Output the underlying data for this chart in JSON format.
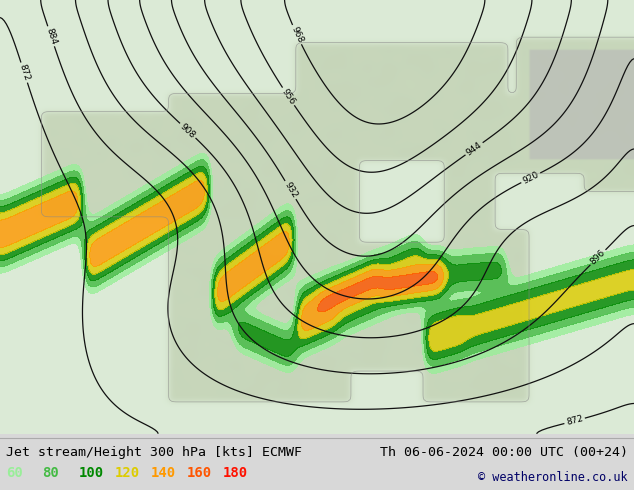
{
  "title_left": "Jet stream/Height 300 hPa [kts] ECMWF",
  "title_right": "Th 06-06-2024 00:00 UTC (00+24)",
  "copyright": "© weatheronline.co.uk",
  "legend_values": [
    60,
    80,
    100,
    120,
    140,
    160,
    180
  ],
  "legend_colors": [
    "#99ee99",
    "#44bb44",
    "#008800",
    "#ddcc00",
    "#ff9900",
    "#ff5500",
    "#ff1100"
  ],
  "bottom_bar_color": "#d8d8d8",
  "map_ocean_color": "#ddeedd",
  "map_land_color": "#c8d4b8",
  "contour_color": "#111111",
  "contour_label_size": 6.5,
  "jet_levels": [
    60,
    80,
    100,
    120,
    140,
    160,
    180,
    220
  ],
  "jet_fill_colors": [
    "#99ee99",
    "#44bb44",
    "#008800",
    "#ddcc00",
    "#ff9900",
    "#ff5500",
    "#ff1100"
  ],
  "title_fontsize": 9.5,
  "legend_fontsize": 10,
  "copyright_fontsize": 8.5
}
